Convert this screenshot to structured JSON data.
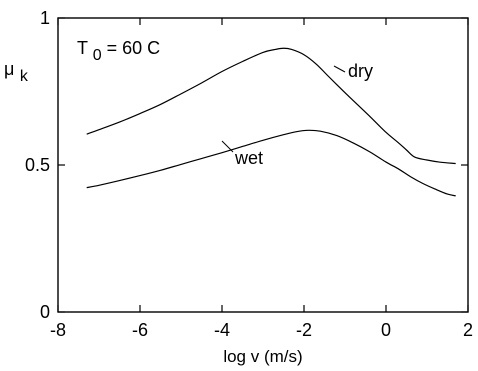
{
  "chart_data": {
    "type": "line",
    "title": "",
    "xlabel": "log v (m/s)",
    "ylabel": {
      "symbol": "μ",
      "subscript": "k"
    },
    "xlim": [
      -8,
      2
    ],
    "ylim": [
      0,
      1
    ],
    "x_ticks": [
      -8,
      -6,
      -4,
      -2,
      0,
      2
    ],
    "y_ticks": [
      0,
      0.5,
      1
    ],
    "x_tick_labels": [
      "-8",
      "-6",
      "-4",
      "-2",
      "0",
      "2"
    ],
    "y_tick_labels": [
      "0",
      "0.5",
      "1"
    ],
    "grid": false,
    "annotation": {
      "prefix": "T",
      "subscript": "0",
      "suffix": " = 60 C"
    },
    "series": [
      {
        "name": "dry",
        "color": "#000000",
        "x": [
          -7.3,
          -7.0,
          -6.5,
          -6.0,
          -5.5,
          -5.0,
          -4.5,
          -4.0,
          -3.5,
          -3.0,
          -2.7,
          -2.5,
          -2.3,
          -2.0,
          -1.7,
          -1.4,
          -1.0,
          -0.7,
          -0.4,
          0.0,
          0.3,
          0.5,
          0.7,
          1.0,
          1.3,
          1.7
        ],
        "y": [
          0.605,
          0.62,
          0.646,
          0.675,
          0.706,
          0.742,
          0.779,
          0.818,
          0.852,
          0.883,
          0.893,
          0.897,
          0.893,
          0.875,
          0.843,
          0.801,
          0.746,
          0.706,
          0.666,
          0.611,
          0.576,
          0.551,
          0.527,
          0.517,
          0.51,
          0.505
        ]
      },
      {
        "name": "wet",
        "color": "#000000",
        "x": [
          -7.3,
          -7.0,
          -6.5,
          -6.0,
          -5.5,
          -5.0,
          -4.5,
          -4.0,
          -3.5,
          -3.0,
          -2.5,
          -2.2,
          -1.9,
          -1.6,
          -1.2,
          -0.8,
          -0.4,
          0.0,
          0.3,
          0.6,
          0.9,
          1.2,
          1.5,
          1.7
        ],
        "y": [
          0.423,
          0.431,
          0.447,
          0.464,
          0.482,
          0.502,
          0.522,
          0.542,
          0.563,
          0.584,
          0.603,
          0.613,
          0.618,
          0.615,
          0.6,
          0.575,
          0.545,
          0.51,
          0.487,
          0.46,
          0.437,
          0.418,
          0.401,
          0.395
        ]
      }
    ],
    "series_labels": [
      "dry",
      "wet"
    ]
  }
}
